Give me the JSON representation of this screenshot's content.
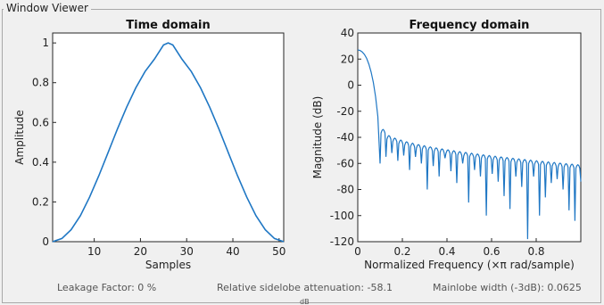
{
  "window": {
    "title": "Window Viewer"
  },
  "chart_data": [
    {
      "type": "line",
      "title": "Time domain",
      "xlabel": "Samples",
      "ylabel": "Amplitude",
      "xlim": [
        1,
        51
      ],
      "ylim": [
        0,
        1.05
      ],
      "xticks": [
        10,
        20,
        30,
        40,
        50
      ],
      "yticks": [
        0,
        0.2,
        0.4,
        0.6,
        0.8,
        1
      ],
      "ytick_labels": [
        "0",
        "0.2",
        "0.4",
        "0.6",
        "0.8",
        "1"
      ],
      "grid": false,
      "color": "#1f77c4",
      "series": [
        {
          "x": [
            1,
            3,
            5,
            7,
            9,
            11,
            13,
            15,
            17,
            19,
            21,
            23,
            25,
            26,
            27,
            29,
            31,
            33,
            35,
            37,
            39,
            41,
            43,
            45,
            47,
            49,
            51
          ],
          "y": [
            0.0,
            0.016,
            0.06,
            0.131,
            0.224,
            0.332,
            0.449,
            0.566,
            0.676,
            0.774,
            0.856,
            0.918,
            0.99,
            1.0,
            0.99,
            0.918,
            0.856,
            0.774,
            0.676,
            0.566,
            0.449,
            0.332,
            0.224,
            0.131,
            0.06,
            0.016,
            0.0
          ]
        }
      ]
    },
    {
      "type": "line",
      "title": "Frequency domain",
      "xlabel": "Normalized Frequency  (×π rad/sample)",
      "ylabel": "Magnitude (dB)",
      "xlim": [
        0,
        1
      ],
      "ylim": [
        -120,
        40
      ],
      "xticks": [
        0,
        0.2,
        0.4,
        0.6,
        0.8
      ],
      "xtick_labels": [
        "0",
        "0.2",
        "0.4",
        "0.6",
        "0.8"
      ],
      "yticks": [
        -120,
        -100,
        -80,
        -60,
        -40,
        -20,
        0,
        20,
        40
      ],
      "grid": false,
      "color": "#1f77c4",
      "mainlobe": {
        "x": [
          0,
          0.01,
          0.02,
          0.03,
          0.04,
          0.05,
          0.06,
          0.07,
          0.08,
          0.09,
          0.1
        ],
        "y": [
          27,
          26.6,
          25.5,
          23.5,
          20.5,
          16,
          10,
          2,
          -9,
          -24,
          -60
        ]
      },
      "sidelobe_null_depth": [
        -55,
        -52,
        -58,
        -54,
        -65,
        -55,
        -60,
        -80,
        -62,
        -70,
        -56,
        -66,
        -75,
        -60,
        -90,
        -65,
        -70,
        -100,
        -68,
        -74,
        -85,
        -95,
        -70,
        -78,
        -118,
        -70,
        -100,
        -86,
        -75,
        -72,
        -80,
        -96,
        -104,
        -74
      ]
    }
  ],
  "status": {
    "leakage": "Leakage Factor: 0 %",
    "sidelobe": "Relative sidelobe attenuation: -58.1",
    "mainlobe": "Mainlobe width (-3dB): 0.0625",
    "cutoff": "dB"
  }
}
